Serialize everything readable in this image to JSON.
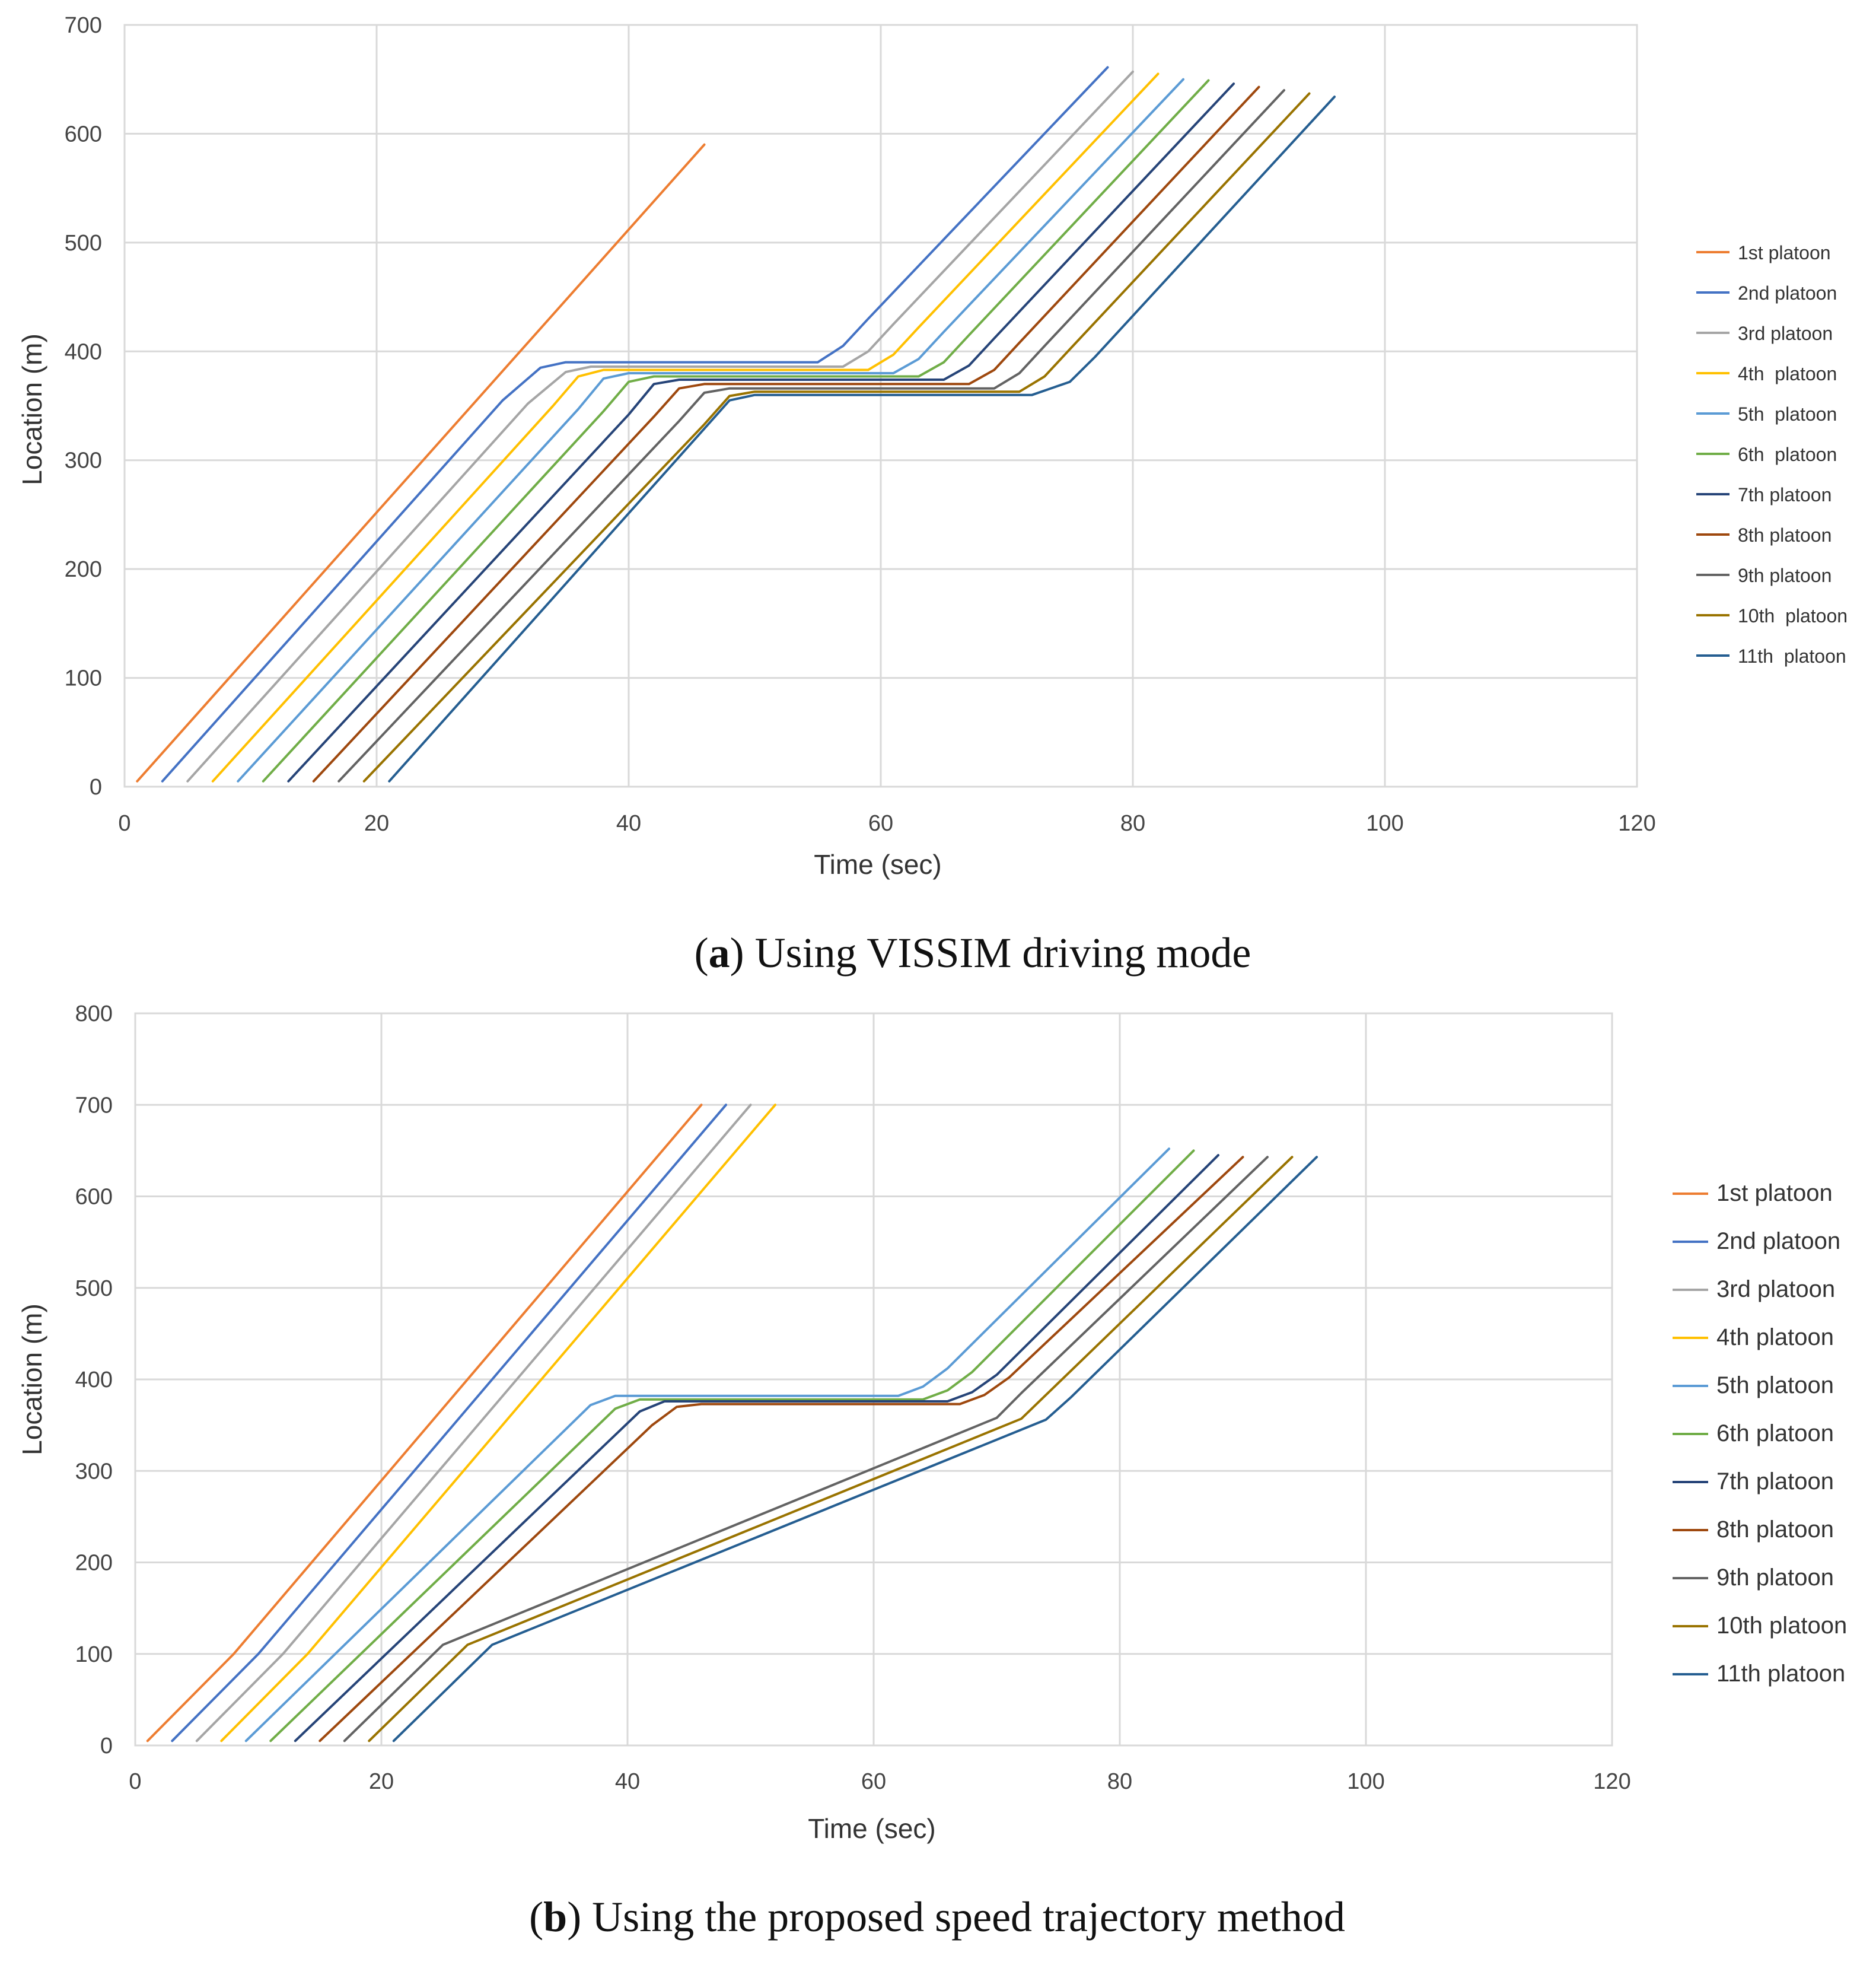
{
  "series_colors": [
    "#ED7D31",
    "#4472C4",
    "#A5A5A5",
    "#FFC000",
    "#5B9BD5",
    "#70AD47",
    "#264478",
    "#9E480E",
    "#636363",
    "#997300",
    "#255E91"
  ],
  "chart_data": [
    {
      "type": "line",
      "caption_label": "a",
      "caption_text": "Using VISSIM driving mode",
      "xlabel": "Time (sec)",
      "ylabel": "Location (m)",
      "xlim": [
        0,
        120
      ],
      "ylim": [
        0,
        700
      ],
      "xticks": [
        0,
        20,
        40,
        60,
        80,
        100,
        120
      ],
      "yticks": [
        0,
        100,
        200,
        300,
        400,
        500,
        600,
        700
      ],
      "grid": true,
      "legend_position": "right",
      "series": [
        {
          "name": "1st platoon",
          "points": [
            [
              1,
              5
            ],
            [
              46,
              590
            ]
          ]
        },
        {
          "name": "2nd platoon",
          "points": [
            [
              3,
              5
            ],
            [
              30,
              355
            ],
            [
              33,
              385
            ],
            [
              35,
              390
            ],
            [
              55,
              390
            ],
            [
              57,
              405
            ],
            [
              59,
              430
            ],
            [
              78,
              661
            ]
          ]
        },
        {
          "name": "3rd platoon",
          "points": [
            [
              5,
              5
            ],
            [
              32,
              352
            ],
            [
              35,
              381
            ],
            [
              37,
              386
            ],
            [
              57,
              386
            ],
            [
              59,
              400
            ],
            [
              61,
              425
            ],
            [
              80,
              657
            ]
          ]
        },
        {
          "name": "4th  platoon",
          "points": [
            [
              7,
              5
            ],
            [
              34,
              350
            ],
            [
              36,
              377
            ],
            [
              38,
              383
            ],
            [
              59,
              383
            ],
            [
              61,
              397
            ],
            [
              63,
              422
            ],
            [
              82,
              655
            ]
          ]
        },
        {
          "name": "5th  platoon",
          "points": [
            [
              9,
              5
            ],
            [
              36,
              347
            ],
            [
              38,
              375
            ],
            [
              40,
              380
            ],
            [
              61,
              380
            ],
            [
              63,
              393
            ],
            [
              65,
              418
            ],
            [
              84,
              650
            ]
          ]
        },
        {
          "name": "6th  platoon",
          "points": [
            [
              11,
              5
            ],
            [
              38,
              345
            ],
            [
              40,
              372
            ],
            [
              42,
              377
            ],
            [
              63,
              377
            ],
            [
              65,
              390
            ],
            [
              67,
              415
            ],
            [
              86,
              649
            ]
          ]
        },
        {
          "name": "7th platoon",
          "points": [
            [
              13,
              5
            ],
            [
              40,
              342
            ],
            [
              42,
              370
            ],
            [
              44,
              374
            ],
            [
              65,
              374
            ],
            [
              67,
              387
            ],
            [
              69,
              412
            ],
            [
              88,
              646
            ]
          ]
        },
        {
          "name": "8th platoon",
          "points": [
            [
              15,
              5
            ],
            [
              42,
              340
            ],
            [
              44,
              366
            ],
            [
              46,
              370
            ],
            [
              67,
              370
            ],
            [
              69,
              383
            ],
            [
              71,
              408
            ],
            [
              90,
              643
            ]
          ]
        },
        {
          "name": "9th platoon",
          "points": [
            [
              17,
              5
            ],
            [
              44,
              336
            ],
            [
              46,
              362
            ],
            [
              48,
              366
            ],
            [
              69,
              366
            ],
            [
              71,
              380
            ],
            [
              73,
              405
            ],
            [
              92,
              640
            ]
          ]
        },
        {
          "name": "10th  platoon",
          "points": [
            [
              19,
              5
            ],
            [
              46,
              333
            ],
            [
              48,
              359
            ],
            [
              50,
              363
            ],
            [
              71,
              363
            ],
            [
              73,
              377
            ],
            [
              75,
              402
            ],
            [
              94,
              637
            ]
          ]
        },
        {
          "name": "11th  platoon",
          "points": [
            [
              21,
              5
            ],
            [
              47,
              342
            ],
            [
              48,
              355
            ],
            [
              50,
              360
            ],
            [
              72,
              360
            ],
            [
              75,
              372
            ],
            [
              77,
              395
            ],
            [
              96,
              634
            ]
          ]
        }
      ]
    },
    {
      "type": "line",
      "caption_label": "b",
      "caption_text": "Using the proposed speed trajectory method",
      "xlabel": "Time (sec)",
      "ylabel": "Location (m)",
      "xlim": [
        0,
        120
      ],
      "ylim": [
        0,
        800
      ],
      "xticks": [
        0,
        20,
        40,
        60,
        80,
        100,
        120
      ],
      "yticks": [
        0,
        100,
        200,
        300,
        400,
        500,
        600,
        700,
        800
      ],
      "grid": true,
      "legend_position": "right",
      "series": [
        {
          "name": "1st platoon",
          "points": [
            [
              1,
              5
            ],
            [
              8,
              100
            ],
            [
              46,
              700
            ]
          ]
        },
        {
          "name": "2nd platoon",
          "points": [
            [
              3,
              5
            ],
            [
              10,
              100
            ],
            [
              48,
              700
            ]
          ]
        },
        {
          "name": "3rd platoon",
          "points": [
            [
              5,
              5
            ],
            [
              12,
              100
            ],
            [
              50,
              700
            ]
          ]
        },
        {
          "name": "4th platoon",
          "points": [
            [
              7,
              5
            ],
            [
              14,
              100
            ],
            [
              52,
              700
            ]
          ]
        },
        {
          "name": "5th platoon",
          "points": [
            [
              9,
              5
            ],
            [
              37,
              372
            ],
            [
              39,
              382
            ],
            [
              62,
              382
            ],
            [
              64,
              392
            ],
            [
              66,
              412
            ],
            [
              84,
              652
            ]
          ]
        },
        {
          "name": "6th platoon",
          "points": [
            [
              11,
              5
            ],
            [
              39,
              368
            ],
            [
              41,
              378
            ],
            [
              64,
              378
            ],
            [
              66,
              388
            ],
            [
              68,
              408
            ],
            [
              86,
              650
            ]
          ]
        },
        {
          "name": "7th platoon",
          "points": [
            [
              13,
              5
            ],
            [
              41,
              365
            ],
            [
              43,
              376
            ],
            [
              66,
              376
            ],
            [
              68,
              386
            ],
            [
              70,
              405
            ],
            [
              88,
              645
            ]
          ]
        },
        {
          "name": "8th platoon",
          "points": [
            [
              15,
              5
            ],
            [
              42,
              350
            ],
            [
              44,
              370
            ],
            [
              46,
              373
            ],
            [
              67,
              373
            ],
            [
              69,
              383
            ],
            [
              71,
              402
            ],
            [
              90,
              643
            ]
          ]
        },
        {
          "name": "9th platoon",
          "points": [
            [
              17,
              5
            ],
            [
              25,
              110
            ],
            [
              70,
              358
            ],
            [
              72,
              385
            ],
            [
              92,
              643
            ]
          ]
        },
        {
          "name": "10th platoon",
          "points": [
            [
              19,
              5
            ],
            [
              27,
              110
            ],
            [
              72,
              357
            ],
            [
              74,
              383
            ],
            [
              94,
              643
            ]
          ]
        },
        {
          "name": "11th platoon",
          "points": [
            [
              21,
              5
            ],
            [
              29,
              110
            ],
            [
              74,
              356
            ],
            [
              76,
              380
            ],
            [
              96,
              643
            ]
          ]
        }
      ]
    }
  ]
}
